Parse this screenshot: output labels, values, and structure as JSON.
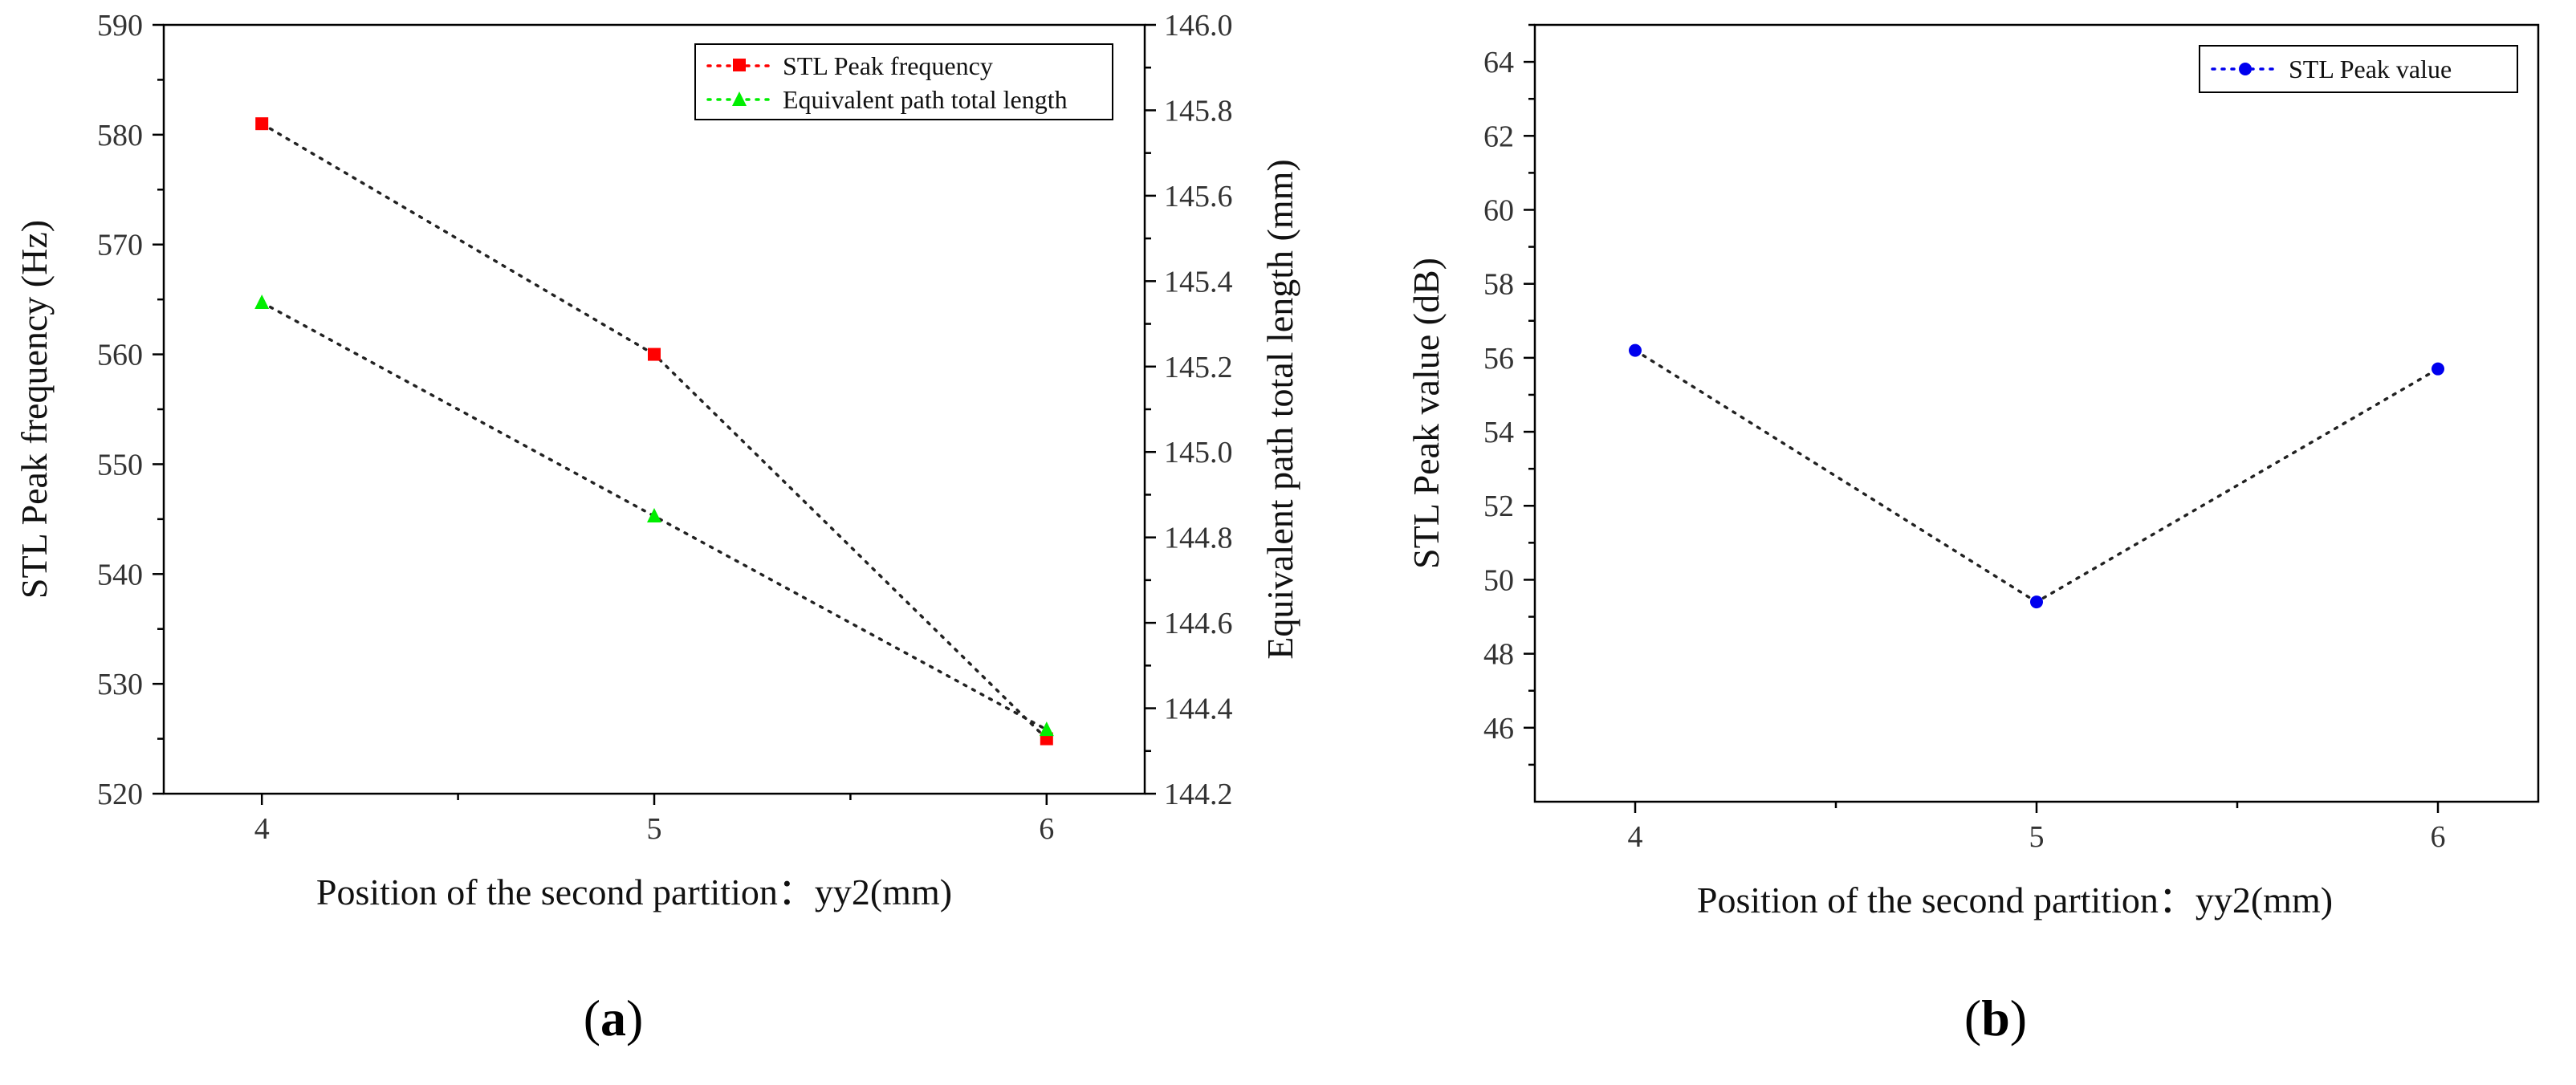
{
  "chart_data": [
    {
      "id": "a",
      "type": "line",
      "panel_label": "a",
      "xlabel": "Position of the second partition：yy2(mm)",
      "ylabel": "STL Peak frequency (Hz)",
      "y2label": "Equivalent path total length (mm)",
      "x": [
        4,
        5,
        6
      ],
      "xlim": [
        3.75,
        6.25
      ],
      "xticks": [
        4,
        5,
        6
      ],
      "ylim": [
        520,
        590
      ],
      "yticks": [
        520,
        530,
        540,
        550,
        560,
        570,
        580,
        590
      ],
      "y2lim": [
        144.2,
        146.0
      ],
      "y2ticks": [
        "144.2",
        "144.4",
        "144.6",
        "144.8",
        "145.0",
        "145.2",
        "145.4",
        "145.6",
        "145.8",
        "146.0"
      ],
      "legend_position": "top-right",
      "series": [
        {
          "name": "STL Peak frequency",
          "axis": "left",
          "marker": "square",
          "color": "#ff0000",
          "values": [
            581,
            560,
            525
          ]
        },
        {
          "name": "Equivalent path total length",
          "axis": "right",
          "marker": "triangle",
          "color": "#00ee00",
          "values": [
            145.35,
            144.85,
            144.35
          ]
        }
      ]
    },
    {
      "id": "b",
      "type": "line",
      "panel_label": "b",
      "xlabel": "Position of the second partition：yy2(mm)",
      "ylabel": "STL Peak value (dB)",
      "x": [
        4,
        5,
        6
      ],
      "xlim": [
        3.75,
        6.25
      ],
      "xticks": [
        4,
        5,
        6
      ],
      "ylim": [
        44,
        65
      ],
      "yticks": [
        46,
        48,
        50,
        52,
        54,
        56,
        58,
        60,
        62,
        64
      ],
      "legend_position": "top-right",
      "series": [
        {
          "name": "STL Peak value",
          "axis": "left",
          "marker": "circle",
          "color": "#0000ee",
          "values": [
            56.2,
            49.4,
            55.7
          ]
        }
      ]
    }
  ]
}
